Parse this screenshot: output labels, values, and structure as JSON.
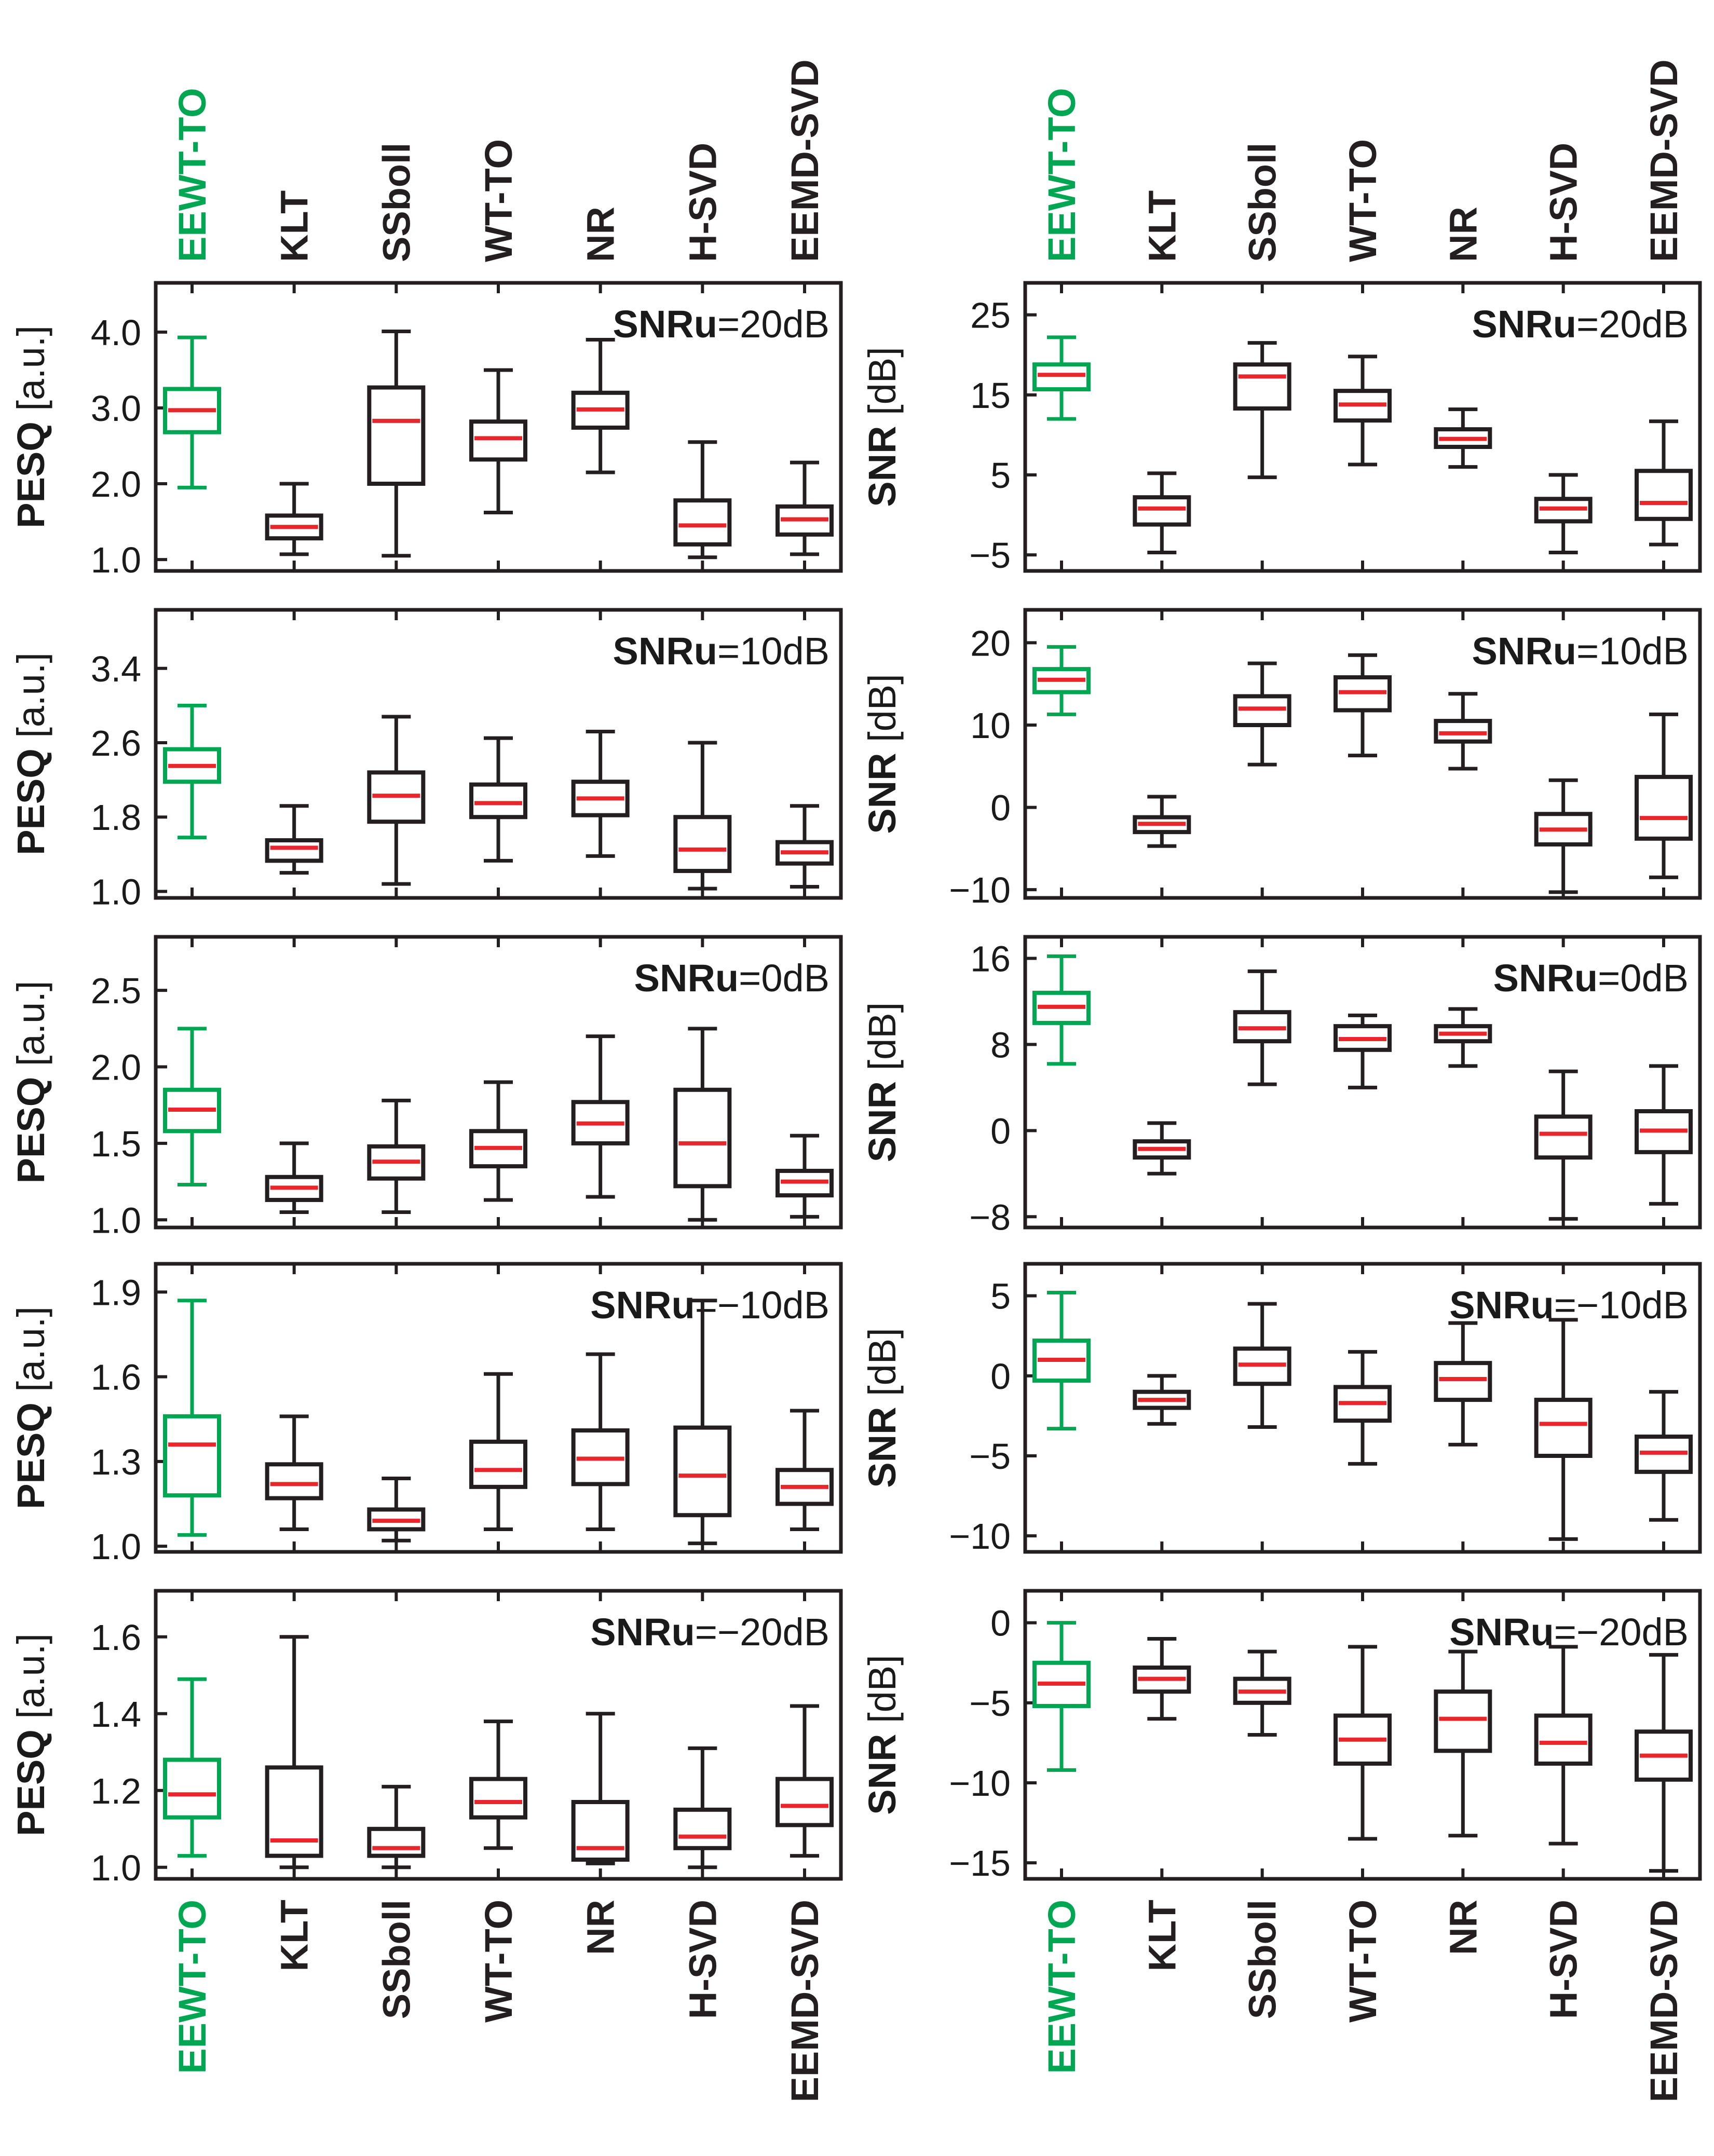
{
  "colors": {
    "highlight": "#00a651",
    "median": "#e8262b",
    "box": "#231f20"
  },
  "categories": [
    "EEWT-TO",
    "KLT",
    "SSboll",
    "WT-TO",
    "NR",
    "H-SVD",
    "EEMD-SVD"
  ],
  "highlight_index": 0,
  "chart_data": [
    {
      "type": "boxplot",
      "panel": "PESQ / SNRu=20dB",
      "ylabel_bold": "PESQ",
      "ylabel_unit": " [a.u.]",
      "annotation_bold": "SNRu",
      "annotation_value": "=20dB",
      "ylim": [
        0.85,
        4.65
      ],
      "yticks": [
        1.0,
        2.0,
        3.0,
        4.0
      ],
      "ytick_labels": [
        "1.0",
        "2.0",
        "3.0",
        "4.0"
      ],
      "boxes": [
        {
          "category": "EEWT-TO",
          "whislo": 1.95,
          "q1": 2.68,
          "med": 2.97,
          "q3": 3.25,
          "whishi": 3.93
        },
        {
          "category": "KLT",
          "whislo": 1.07,
          "q1": 1.28,
          "med": 1.43,
          "q3": 1.58,
          "whishi": 2.0
        },
        {
          "category": "SSboll",
          "whislo": 1.05,
          "q1": 2.0,
          "med": 2.83,
          "q3": 3.27,
          "whishi": 4.01
        },
        {
          "category": "WT-TO",
          "whislo": 1.62,
          "q1": 2.32,
          "med": 2.6,
          "q3": 2.82,
          "whishi": 3.5
        },
        {
          "category": "NR",
          "whislo": 2.15,
          "q1": 2.74,
          "med": 2.98,
          "q3": 3.2,
          "whishi": 3.9
        },
        {
          "category": "H-SVD",
          "whislo": 1.03,
          "q1": 1.2,
          "med": 1.45,
          "q3": 1.78,
          "whishi": 2.55
        },
        {
          "category": "EEMD-SVD",
          "whislo": 1.07,
          "q1": 1.33,
          "med": 1.53,
          "q3": 1.7,
          "whishi": 2.28
        }
      ]
    },
    {
      "type": "boxplot",
      "panel": "SNR / SNRu=20dB",
      "ylabel_bold": "SNR",
      "ylabel_unit": " [dB]",
      "annotation_bold": "SNRu",
      "annotation_value": "=20dB",
      "ylim": [
        -7,
        29
      ],
      "yticks": [
        -5,
        5,
        15,
        25
      ],
      "ytick_labels": [
        "−5",
        "5",
        "15",
        "25"
      ],
      "boxes": [
        {
          "category": "EEWT-TO",
          "whislo": 12,
          "q1": 15.7,
          "med": 17.5,
          "q3": 18.8,
          "whishi": 22.2
        },
        {
          "category": "KLT",
          "whislo": -4.7,
          "q1": -1.2,
          "med": 0.8,
          "q3": 2.2,
          "whishi": 5.2
        },
        {
          "category": "SSboll",
          "whislo": 4.7,
          "q1": 13.3,
          "med": 17.3,
          "q3": 18.8,
          "whishi": 21.5
        },
        {
          "category": "WT-TO",
          "whislo": 6.3,
          "q1": 11.8,
          "med": 13.8,
          "q3": 15.5,
          "whishi": 19.8
        },
        {
          "category": "NR",
          "whislo": 6.0,
          "q1": 8.5,
          "med": 9.5,
          "q3": 10.7,
          "whishi": 13.2
        },
        {
          "category": "H-SVD",
          "whislo": -4.7,
          "q1": -0.8,
          "med": 0.8,
          "q3": 2.0,
          "whishi": 5.0
        },
        {
          "category": "EEMD-SVD",
          "whislo": -3.7,
          "q1": -0.5,
          "med": 1.5,
          "q3": 5.5,
          "whishi": 11.7
        }
      ]
    },
    {
      "type": "boxplot",
      "panel": "PESQ / SNRu=10dB",
      "ylabel_bold": "PESQ",
      "ylabel_unit": " [a.u.]",
      "annotation_bold": "SNRu",
      "annotation_value": "=10dB",
      "ylim": [
        0.93,
        4.03
      ],
      "yticks": [
        1.0,
        1.8,
        2.6,
        3.4
      ],
      "ytick_labels": [
        "1.0",
        "1.8",
        "2.6",
        "3.4"
      ],
      "boxes": [
        {
          "category": "EEWT-TO",
          "whislo": 1.58,
          "q1": 2.18,
          "med": 2.35,
          "q3": 2.53,
          "whishi": 3.0
        },
        {
          "category": "KLT",
          "whislo": 1.2,
          "q1": 1.33,
          "med": 1.47,
          "q3": 1.55,
          "whishi": 1.92
        },
        {
          "category": "SSboll",
          "whislo": 1.08,
          "q1": 1.75,
          "med": 2.03,
          "q3": 2.28,
          "whishi": 2.88
        },
        {
          "category": "WT-TO",
          "whislo": 1.33,
          "q1": 1.8,
          "med": 1.95,
          "q3": 2.15,
          "whishi": 2.65
        },
        {
          "category": "NR",
          "whislo": 1.38,
          "q1": 1.82,
          "med": 2.0,
          "q3": 2.18,
          "whishi": 2.72
        },
        {
          "category": "H-SVD",
          "whislo": 1.03,
          "q1": 1.22,
          "med": 1.45,
          "q3": 1.8,
          "whishi": 2.6
        },
        {
          "category": "EEMD-SVD",
          "whislo": 1.05,
          "q1": 1.3,
          "med": 1.42,
          "q3": 1.53,
          "whishi": 1.92
        }
      ]
    },
    {
      "type": "boxplot",
      "panel": "SNR / SNRu=10dB",
      "ylabel_bold": "SNR",
      "ylabel_unit": " [dB]",
      "annotation_bold": "SNRu",
      "annotation_value": "=10dB",
      "ylim": [
        -11,
        24
      ],
      "yticks": [
        -10,
        0,
        10,
        20
      ],
      "ytick_labels": [
        "−10",
        "0",
        "10",
        "20"
      ],
      "boxes": [
        {
          "category": "EEWT-TO",
          "whislo": 11.3,
          "q1": 14.0,
          "med": 15.5,
          "q3": 16.8,
          "whishi": 19.5
        },
        {
          "category": "KLT",
          "whislo": -4.7,
          "q1": -3.0,
          "med": -2.0,
          "q3": -1.2,
          "whishi": 1.3
        },
        {
          "category": "SSboll",
          "whislo": 5.2,
          "q1": 10.0,
          "med": 12.0,
          "q3": 13.5,
          "whishi": 17.5
        },
        {
          "category": "WT-TO",
          "whislo": 6.3,
          "q1": 11.8,
          "med": 14.0,
          "q3": 15.8,
          "whishi": 18.5
        },
        {
          "category": "NR",
          "whislo": 4.7,
          "q1": 8.0,
          "med": 9.0,
          "q3": 10.5,
          "whishi": 13.8
        },
        {
          "category": "H-SVD",
          "whislo": -10.3,
          "q1": -4.5,
          "med": -2.7,
          "q3": -0.8,
          "whishi": 3.3
        },
        {
          "category": "EEMD-SVD",
          "whislo": -8.5,
          "q1": -3.8,
          "med": -1.3,
          "q3": 3.7,
          "whishi": 11.3
        }
      ]
    },
    {
      "type": "boxplot",
      "panel": "PESQ / SNRu=0dB",
      "ylabel_bold": "PESQ",
      "ylabel_unit": " [a.u.]",
      "annotation_bold": "SNRu",
      "annotation_value": "=0dB",
      "ylim": [
        0.95,
        2.85
      ],
      "yticks": [
        1.0,
        1.5,
        2.0,
        2.5
      ],
      "ytick_labels": [
        "1.0",
        "1.5",
        "2.0",
        "2.5"
      ],
      "boxes": [
        {
          "category": "EEWT-TO",
          "whislo": 1.23,
          "q1": 1.58,
          "med": 1.72,
          "q3": 1.85,
          "whishi": 2.25
        },
        {
          "category": "KLT",
          "whislo": 1.05,
          "q1": 1.13,
          "med": 1.21,
          "q3": 1.28,
          "whishi": 1.5
        },
        {
          "category": "SSboll",
          "whislo": 1.05,
          "q1": 1.27,
          "med": 1.38,
          "q3": 1.48,
          "whishi": 1.78
        },
        {
          "category": "WT-TO",
          "whislo": 1.13,
          "q1": 1.35,
          "med": 1.47,
          "q3": 1.58,
          "whishi": 1.9
        },
        {
          "category": "NR",
          "whislo": 1.15,
          "q1": 1.5,
          "med": 1.63,
          "q3": 1.77,
          "whishi": 2.2
        },
        {
          "category": "H-SVD",
          "whislo": 1.0,
          "q1": 1.22,
          "med": 1.5,
          "q3": 1.85,
          "whishi": 2.25
        },
        {
          "category": "EEMD-SVD",
          "whislo": 1.02,
          "q1": 1.16,
          "med": 1.25,
          "q3": 1.32,
          "whishi": 1.55
        }
      ]
    },
    {
      "type": "boxplot",
      "panel": "SNR / SNRu=0dB",
      "ylabel_bold": "SNR",
      "ylabel_unit": " [dB]",
      "annotation_bold": "SNRu",
      "annotation_value": "=0dB",
      "ylim": [
        -9,
        18
      ],
      "yticks": [
        -8,
        0,
        8,
        16
      ],
      "ytick_labels": [
        "−8",
        "0",
        "8",
        "16"
      ],
      "boxes": [
        {
          "category": "EEWT-TO",
          "whislo": 6.2,
          "q1": 10.0,
          "med": 11.5,
          "q3": 12.8,
          "whishi": 16.2
        },
        {
          "category": "KLT",
          "whislo": -4.0,
          "q1": -2.5,
          "med": -1.7,
          "q3": -1.0,
          "whishi": 0.7
        },
        {
          "category": "SSboll",
          "whislo": 4.3,
          "q1": 8.3,
          "med": 9.5,
          "q3": 11.0,
          "whishi": 14.8
        },
        {
          "category": "WT-TO",
          "whislo": 4.0,
          "q1": 7.5,
          "med": 8.5,
          "q3": 9.7,
          "whishi": 10.7
        },
        {
          "category": "NR",
          "whislo": 6.0,
          "q1": 8.3,
          "med": 9.0,
          "q3": 9.7,
          "whishi": 11.3
        },
        {
          "category": "H-SVD",
          "whislo": -8.2,
          "q1": -2.5,
          "med": -0.3,
          "q3": 1.3,
          "whishi": 5.5
        },
        {
          "category": "EEMD-SVD",
          "whislo": -6.8,
          "q1": -2.0,
          "med": 0.0,
          "q3": 1.8,
          "whishi": 6.0
        }
      ]
    },
    {
      "type": "boxplot",
      "panel": "PESQ / SNRu=-10dB",
      "ylabel_bold": "PESQ",
      "ylabel_unit": " [a.u.]",
      "annotation_bold": "SNRu",
      "annotation_value": "=−10dB",
      "ylim": [
        0.98,
        2.0
      ],
      "yticks": [
        1.0,
        1.3,
        1.6,
        1.9
      ],
      "ytick_labels": [
        "1.0",
        "1.3",
        "1.6",
        "1.9"
      ],
      "boxes": [
        {
          "category": "EEWT-TO",
          "whislo": 1.04,
          "q1": 1.18,
          "med": 1.36,
          "q3": 1.46,
          "whishi": 1.87
        },
        {
          "category": "KLT",
          "whislo": 1.06,
          "q1": 1.17,
          "med": 1.22,
          "q3": 1.29,
          "whishi": 1.46
        },
        {
          "category": "SSboll",
          "whislo": 1.02,
          "q1": 1.06,
          "med": 1.09,
          "q3": 1.13,
          "whishi": 1.24
        },
        {
          "category": "WT-TO",
          "whislo": 1.06,
          "q1": 1.21,
          "med": 1.27,
          "q3": 1.37,
          "whishi": 1.61
        },
        {
          "category": "NR",
          "whislo": 1.06,
          "q1": 1.22,
          "med": 1.31,
          "q3": 1.41,
          "whishi": 1.68
        },
        {
          "category": "H-SVD",
          "whislo": 1.01,
          "q1": 1.11,
          "med": 1.25,
          "q3": 1.42,
          "whishi": 1.87
        },
        {
          "category": "EEMD-SVD",
          "whislo": 1.06,
          "q1": 1.15,
          "med": 1.21,
          "q3": 1.27,
          "whishi": 1.48
        }
      ]
    },
    {
      "type": "boxplot",
      "panel": "SNR / SNRu=-10dB",
      "ylabel_bold": "SNR",
      "ylabel_unit": " [dB]",
      "annotation_bold": "SNRu",
      "annotation_value": "=−10dB",
      "ylim": [
        -11,
        7
      ],
      "yticks": [
        -10,
        -5,
        0,
        5
      ],
      "ytick_labels": [
        "−10",
        "−5",
        "0",
        "5"
      ],
      "boxes": [
        {
          "category": "EEWT-TO",
          "whislo": -3.3,
          "q1": -0.3,
          "med": 1.0,
          "q3": 2.2,
          "whishi": 5.2
        },
        {
          "category": "KLT",
          "whislo": -3.0,
          "q1": -2.0,
          "med": -1.5,
          "q3": -1.0,
          "whishi": 0.0
        },
        {
          "category": "SSboll",
          "whislo": -3.2,
          "q1": -0.5,
          "med": 0.7,
          "q3": 1.7,
          "whishi": 4.5
        },
        {
          "category": "WT-TO",
          "whislo": -5.5,
          "q1": -2.8,
          "med": -1.7,
          "q3": -0.7,
          "whishi": 1.5
        },
        {
          "category": "NR",
          "whislo": -4.3,
          "q1": -1.5,
          "med": -0.2,
          "q3": 0.8,
          "whishi": 3.3
        },
        {
          "category": "H-SVD",
          "whislo": -10.2,
          "q1": -5.0,
          "med": -3.0,
          "q3": -1.5,
          "whishi": 3.5
        },
        {
          "category": "EEMD-SVD",
          "whislo": -9.0,
          "q1": -6.0,
          "med": -4.8,
          "q3": -3.8,
          "whishi": -1.0
        }
      ]
    },
    {
      "type": "boxplot",
      "panel": "PESQ / SNRu=-20dB",
      "ylabel_bold": "PESQ",
      "ylabel_unit": " [a.u.]",
      "annotation_bold": "SNRu",
      "annotation_value": "=−20dB",
      "ylim": [
        0.97,
        1.72
      ],
      "yticks": [
        1.0,
        1.2,
        1.4,
        1.6
      ],
      "ytick_labels": [
        "1.0",
        "1.2",
        "1.4",
        "1.6"
      ],
      "boxes": [
        {
          "category": "EEWT-TO",
          "whislo": 1.03,
          "q1": 1.13,
          "med": 1.19,
          "q3": 1.28,
          "whishi": 1.49
        },
        {
          "category": "KLT",
          "whislo": 1.0,
          "q1": 1.03,
          "med": 1.07,
          "q3": 1.26,
          "whishi": 1.6
        },
        {
          "category": "SSboll",
          "whislo": 1.0,
          "q1": 1.03,
          "med": 1.05,
          "q3": 1.1,
          "whishi": 1.21
        },
        {
          "category": "WT-TO",
          "whislo": 1.05,
          "q1": 1.13,
          "med": 1.17,
          "q3": 1.23,
          "whishi": 1.38
        },
        {
          "category": "NR",
          "whislo": 1.01,
          "q1": 1.02,
          "med": 1.05,
          "q3": 1.17,
          "whishi": 1.4
        },
        {
          "category": "H-SVD",
          "whislo": 1.0,
          "q1": 1.05,
          "med": 1.08,
          "q3": 1.15,
          "whishi": 1.31
        },
        {
          "category": "EEMD-SVD",
          "whislo": 1.03,
          "q1": 1.11,
          "med": 1.16,
          "q3": 1.23,
          "whishi": 1.42
        }
      ]
    },
    {
      "type": "boxplot",
      "panel": "SNR / SNRu=-20dB",
      "ylabel_bold": "SNR",
      "ylabel_unit": " [dB]",
      "annotation_bold": "SNRu",
      "annotation_value": "=−20dB",
      "ylim": [
        -16,
        2
      ],
      "yticks": [
        -15,
        -10,
        -5,
        0
      ],
      "ytick_labels": [
        "−15",
        "−10",
        "−5",
        "0"
      ],
      "boxes": [
        {
          "category": "EEWT-TO",
          "whislo": -9.2,
          "q1": -5.2,
          "med": -3.8,
          "q3": -2.5,
          "whishi": 0.0
        },
        {
          "category": "KLT",
          "whislo": -6.0,
          "q1": -4.3,
          "med": -3.5,
          "q3": -2.8,
          "whishi": -1.0
        },
        {
          "category": "SSboll",
          "whislo": -7.0,
          "q1": -5.0,
          "med": -4.3,
          "q3": -3.5,
          "whishi": -1.8
        },
        {
          "category": "WT-TO",
          "whislo": -13.5,
          "q1": -8.8,
          "med": -7.3,
          "q3": -5.8,
          "whishi": -1.5
        },
        {
          "category": "NR",
          "whislo": -13.3,
          "q1": -8.0,
          "med": -6.0,
          "q3": -4.3,
          "whishi": -1.8
        },
        {
          "category": "H-SVD",
          "whislo": -13.8,
          "q1": -8.8,
          "med": -7.5,
          "q3": -5.8,
          "whishi": -1.5
        },
        {
          "category": "EEMD-SVD",
          "whislo": -15.5,
          "q1": -9.8,
          "med": -8.3,
          "q3": -6.8,
          "whishi": -2.0
        }
      ]
    }
  ]
}
